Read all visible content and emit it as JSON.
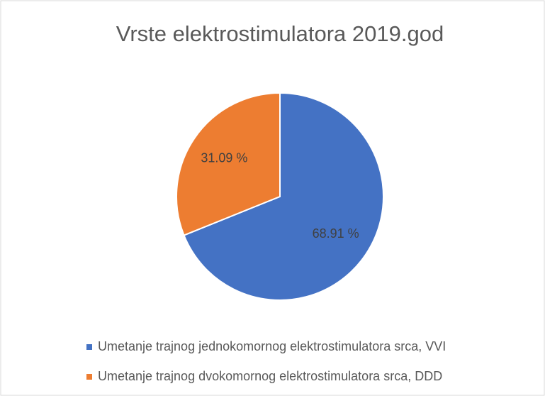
{
  "chart_data": {
    "type": "pie",
    "title": "Vrste elektrostimulatora 2019.god",
    "categories": [
      "Umetanje trajnog jednokomornog elektrostimulatora srca, VVI",
      "Umetanje trajnog dvokomornog elektrostimulatora srca, DDD"
    ],
    "values": [
      68.91,
      31.09
    ],
    "value_labels": [
      "68.91 %",
      "31.09 %"
    ],
    "colors": [
      "#4472c4",
      "#ed7d31"
    ]
  }
}
